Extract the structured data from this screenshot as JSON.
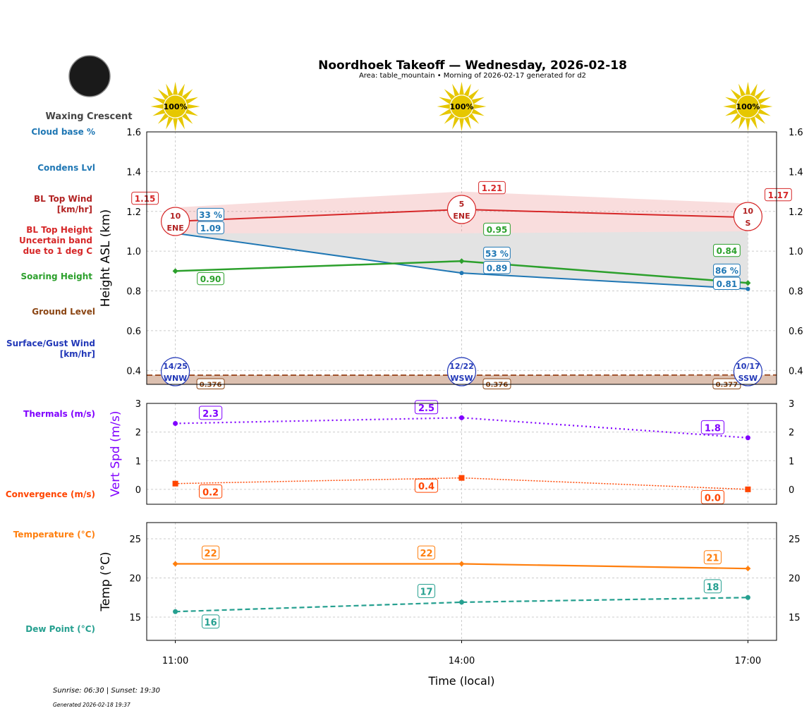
{
  "title": "Noordhoek Takeoff — Wednesday, 2026-02-18",
  "subtitle": "Area: table_mountain • Morning of 2026-02-17 generated for d2",
  "moon_phase": "Waxing Crescent",
  "footer": {
    "sun": "Sunrise: 06:30 | Sunset: 19:30",
    "generated": "Generated 2026-02-18 19:37"
  },
  "colors": {
    "bl_top": "#d62728",
    "condens": "#1f77b4",
    "soaring": "#2ca02c",
    "ground": "#8b4513",
    "surface_wind": "#2238b8",
    "thermals": "#8000ff",
    "convergence": "#ff4500",
    "temperature": "#ff7f0e",
    "dew": "#26a090",
    "sun": "#e6c700"
  },
  "side_labels": {
    "cloud_base": "Cloud base %",
    "condens": "Condens Lvl",
    "bl_wind": "BL Top Wind\n[km/hr]",
    "bl_height": "BL Top Height\nUncertain band\ndue to 1 deg C",
    "soaring": "Soaring Height",
    "ground": "Ground Level",
    "surface_wind": "Surface/Gust Wind\n[km/hr]",
    "thermals": "Thermals (m/s)",
    "convergence": "Convergence (m/s)",
    "temperature": "Temperature (°C)",
    "dew": "Dew Point (°C)"
  },
  "chart_data": [
    {
      "type": "line",
      "ylabel": "Height ASL (km)",
      "x": [
        "11:00",
        "14:00",
        "17:00"
      ],
      "xlim_hours": [
        10.7,
        17.3
      ],
      "ylim": [
        0.33,
        1.6
      ],
      "yticks": [
        "0.4",
        "0.6",
        "0.8",
        "1.0",
        "1.2",
        "1.4",
        "1.6"
      ],
      "grid": true,
      "sun": [
        "100%",
        "100%",
        "100%"
      ],
      "series": [
        {
          "key": "bl_top",
          "values": [
            1.15,
            1.21,
            1.17
          ],
          "labels": [
            "1.15",
            "1.21",
            "1.17"
          ],
          "band_upper": [
            1.22,
            1.3,
            1.24
          ],
          "band_lower": [
            1.09,
            1.09,
            1.1
          ]
        },
        {
          "key": "condens",
          "values": [
            1.09,
            0.89,
            0.81
          ],
          "labels": [
            "1.09",
            "0.89",
            "0.81"
          ],
          "cloud_base": [
            "33 %",
            "53 %",
            "86 %"
          ]
        },
        {
          "key": "soaring",
          "values": [
            0.9,
            0.95,
            0.84
          ],
          "labels": [
            "0.90",
            "0.95",
            "0.84"
          ]
        },
        {
          "key": "ground",
          "values": [
            0.376,
            0.376,
            0.377
          ],
          "labels": [
            "0.376",
            "0.376",
            "0.377"
          ]
        }
      ],
      "bl_wind": [
        {
          "speed": "10",
          "dir": "ENE"
        },
        {
          "speed": "5",
          "dir": "ENE"
        },
        {
          "speed": "10",
          "dir": "S"
        }
      ],
      "surface_wind": [
        {
          "speed": "14/25",
          "dir": "WNW"
        },
        {
          "speed": "12/22",
          "dir": "WSW"
        },
        {
          "speed": "10/17",
          "dir": "SSW"
        }
      ]
    },
    {
      "type": "line",
      "ylabel": "Vert Spd (m/s)",
      "ylim": [
        -0.52,
        3
      ],
      "yticks": [
        "0",
        "1",
        "2",
        "3"
      ],
      "series": [
        {
          "key": "thermals",
          "values": [
            2.3,
            2.5,
            1.8
          ],
          "labels": [
            "2.3",
            "2.5",
            "1.8"
          ]
        },
        {
          "key": "convergence",
          "values": [
            0.2,
            0.4,
            0.0
          ],
          "labels": [
            "0.2",
            "0.4",
            "0.0"
          ]
        }
      ]
    },
    {
      "type": "line",
      "ylabel": "Temp (°C)",
      "xlabel": "Time (local)",
      "ylim": [
        12.03,
        27.07
      ],
      "yticks": [
        "15",
        "20",
        "25"
      ],
      "series": [
        {
          "key": "temperature",
          "values": [
            21.8,
            21.8,
            21.2
          ],
          "labels": [
            "22",
            "22",
            "21"
          ]
        },
        {
          "key": "dew",
          "values": [
            15.7,
            16.9,
            17.5
          ],
          "labels": [
            "16",
            "17",
            "18"
          ]
        }
      ]
    }
  ]
}
